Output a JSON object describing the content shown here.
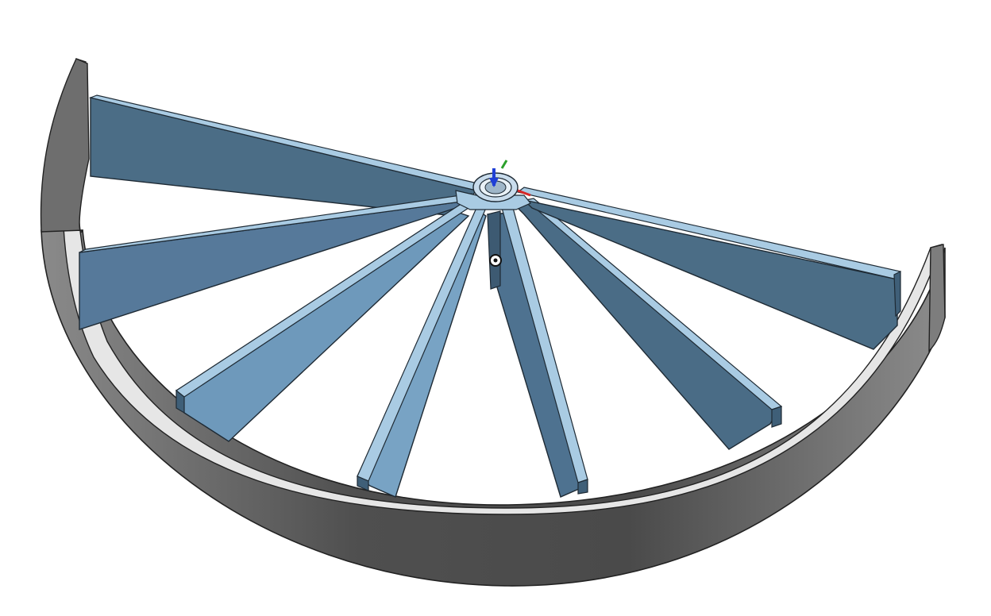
{
  "viewport": {
    "background": "#ffffff"
  },
  "model": {
    "part": "radial-vane-wheel-half",
    "rim": {
      "color": "#7a7a7a",
      "dark": "#4a4a4a",
      "edge": "#2a2a2a"
    },
    "vanes": {
      "count": 8,
      "top_color": "#a9cbe3",
      "face_light": "#6b93b2",
      "face_dark": "#46667e",
      "edge": "#1e2a34"
    },
    "hub": {
      "color": "#dce8f2"
    }
  },
  "triad": {
    "icon": "coordinate-triad-icon",
    "colors": {
      "x": "#d62728",
      "y": "#2ca02c",
      "z": "#1f3fd6"
    }
  },
  "origin_marker": {
    "icon": "origin-point-icon"
  }
}
